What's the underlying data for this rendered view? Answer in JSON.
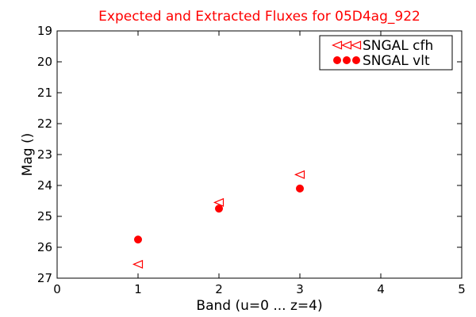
{
  "chart_data": {
    "type": "scatter",
    "title": "Expected and Extracted Fluxes for 05D4ag_922",
    "xlabel": "Band (u=0 ... z=4)",
    "ylabel": "Mag ()",
    "xlim": [
      0,
      5
    ],
    "ylim": [
      27,
      19
    ],
    "y_inverted": true,
    "xticks": [
      "0",
      "1",
      "2",
      "3",
      "4",
      "5"
    ],
    "yticks": [
      "19",
      "20",
      "21",
      "22",
      "23",
      "24",
      "25",
      "26",
      "27"
    ],
    "grid": false,
    "legend_position": "top-right",
    "series": [
      {
        "name": "SNGAL cfh",
        "marker": "triangle-left-open",
        "color": "#ff0000",
        "x": [
          1,
          2,
          3
        ],
        "y": [
          26.55,
          24.55,
          23.65
        ]
      },
      {
        "name": "SNGAL vlt",
        "marker": "circle-filled",
        "color": "#ff0000",
        "x": [
          1,
          2,
          3
        ],
        "y": [
          25.75,
          24.75,
          24.1
        ]
      }
    ]
  }
}
